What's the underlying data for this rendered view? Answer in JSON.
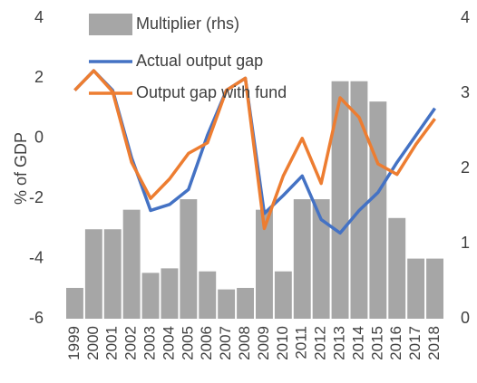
{
  "chart_data": {
    "type": "bar_line",
    "y_label": "% of GDP",
    "categories": [
      "1999",
      "2000",
      "2001",
      "2002",
      "2003",
      "2004",
      "2005",
      "2006",
      "2007",
      "2008",
      "2009",
      "2010",
      "2011",
      "2012",
      "2013",
      "2014",
      "2015",
      "2016",
      "2017",
      "2018"
    ],
    "series": [
      {
        "name": "Multiplier (rhs)",
        "type": "bar",
        "axis": "y2",
        "color": "#a6a6a6",
        "values": [
          0.41,
          1.19,
          1.19,
          1.45,
          0.61,
          0.67,
          1.59,
          0.63,
          0.39,
          0.41,
          1.45,
          0.63,
          1.59,
          1.59,
          3.16,
          3.16,
          2.89,
          1.34,
          0.8,
          0.8
        ]
      },
      {
        "name": "Actual output gap",
        "type": "line",
        "color": "#4472c4",
        "values": [
          1.6,
          2.25,
          1.6,
          -0.65,
          -2.4,
          -2.2,
          -1.7,
          0.1,
          1.6,
          2.0,
          -2.5,
          -1.9,
          -1.25,
          -2.7,
          -3.15,
          -2.4,
          -1.8,
          -0.8,
          0.1,
          1.0
        ]
      },
      {
        "name": "Output gap with fund",
        "type": "line",
        "color": "#ed7d31",
        "values": [
          1.6,
          2.25,
          1.55,
          -0.8,
          -2.0,
          -1.35,
          -0.5,
          -0.15,
          1.6,
          2.0,
          -3.0,
          -1.25,
          0.0,
          -1.5,
          1.35,
          0.7,
          -0.85,
          -1.2,
          -0.2,
          0.65
        ]
      }
    ],
    "ylim": [
      -6,
      4
    ],
    "yticks": [
      -6,
      -4,
      -2,
      0,
      2,
      4
    ],
    "y2lim": [
      0,
      4
    ],
    "y2ticks": [
      0,
      1,
      2,
      3,
      4
    ]
  }
}
